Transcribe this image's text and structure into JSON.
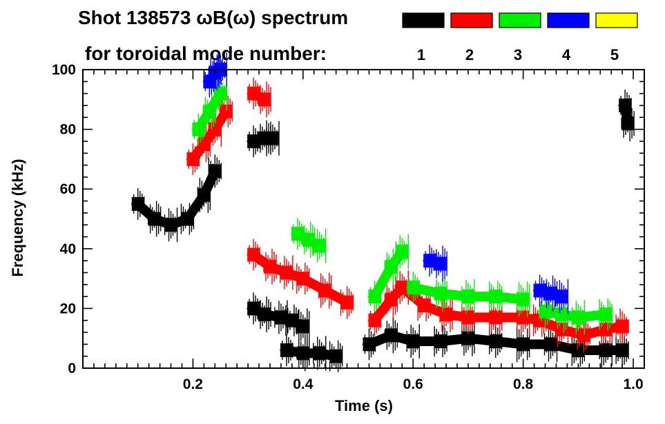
{
  "chart_data": {
    "type": "scatter",
    "title_line1": "Shot 138573 ωB(ω) spectrum",
    "title_line2": "for toroidal mode number:",
    "xlabel": "Time (s)",
    "ylabel": "Frequency (kHz)",
    "xlim": [
      0.0,
      1.02
    ],
    "ylim": [
      0,
      100
    ],
    "x_ticks": [
      "0.2",
      "0.4",
      "0.6",
      "0.8",
      "1.0"
    ],
    "x_tick_values": [
      0.2,
      0.4,
      0.6,
      0.8,
      1.0
    ],
    "y_ticks": [
      "0",
      "20",
      "40",
      "60",
      "80",
      "100"
    ],
    "y_tick_values": [
      0,
      20,
      40,
      60,
      80,
      100
    ],
    "legend": [
      {
        "label": "1",
        "color": "#000000"
      },
      {
        "label": "2",
        "color": "#ff0000"
      },
      {
        "label": "3",
        "color": "#00ee00"
      },
      {
        "label": "4",
        "color": "#0000ff"
      },
      {
        "label": "5",
        "color": "#ffff00"
      }
    ],
    "series": [
      {
        "name": "n=1",
        "color": "#000000",
        "segments": [
          {
            "x": [
              0.1,
              0.13,
              0.16,
              0.19,
              0.22,
              0.24
            ],
            "y": [
              55,
              50,
              48,
              50,
              58,
              66
            ]
          },
          {
            "x": [
              0.31,
              0.33,
              0.345
            ],
            "y": [
              76,
              77,
              77
            ]
          },
          {
            "x": [
              0.31,
              0.33,
              0.36,
              0.38,
              0.4
            ],
            "y": [
              20,
              18,
              17,
              16,
              14
            ]
          },
          {
            "x": [
              0.37,
              0.4,
              0.43,
              0.46
            ],
            "y": [
              6,
              5,
              5,
              4
            ]
          },
          {
            "x": [
              0.52,
              0.56,
              0.6,
              0.65,
              0.7,
              0.75,
              0.8,
              0.85,
              0.9,
              0.95,
              0.98
            ],
            "y": [
              8,
              11,
              9,
              9,
              10,
              9,
              8,
              8,
              6,
              6,
              6
            ]
          },
          {
            "x": [
              0.985,
              0.99
            ],
            "y": [
              88,
              82
            ]
          }
        ]
      },
      {
        "name": "n=2",
        "color": "#ff0000",
        "segments": [
          {
            "x": [
              0.2,
              0.22,
              0.24,
              0.26
            ],
            "y": [
              70,
              75,
              80,
              86
            ]
          },
          {
            "x": [
              0.31,
              0.33
            ],
            "y": [
              92,
              90
            ]
          },
          {
            "x": [
              0.31,
              0.34,
              0.37,
              0.4,
              0.44,
              0.48
            ],
            "y": [
              38,
              34,
              32,
              30,
              26,
              22
            ]
          },
          {
            "x": [
              0.53,
              0.56,
              0.58,
              0.62,
              0.66,
              0.7,
              0.75,
              0.8,
              0.83,
              0.87,
              0.91,
              0.95,
              0.98
            ],
            "y": [
              16,
              23,
              27,
              21,
              18,
              17,
              17,
              17,
              16,
              13,
              11,
              13,
              14
            ]
          }
        ]
      },
      {
        "name": "n=3",
        "color": "#00ee00",
        "segments": [
          {
            "x": [
              0.21,
              0.23,
              0.25
            ],
            "y": [
              80,
              86,
              92
            ]
          },
          {
            "x": [
              0.39,
              0.41,
              0.43
            ],
            "y": [
              45,
              43,
              41
            ]
          },
          {
            "x": [
              0.53,
              0.56,
              0.58
            ],
            "y": [
              24,
              34,
              39
            ]
          },
          {
            "x": [
              0.6,
              0.65,
              0.7,
              0.75,
              0.8
            ],
            "y": [
              27,
              25,
              24,
              24,
              23
            ]
          },
          {
            "x": [
              0.84,
              0.87,
              0.9,
              0.95
            ],
            "y": [
              19,
              18,
              17,
              18
            ]
          }
        ]
      },
      {
        "name": "n=4",
        "color": "#0000ff",
        "segments": [
          {
            "x": [
              0.23,
              0.24,
              0.25
            ],
            "y": [
              96,
              99,
              100
            ]
          },
          {
            "x": [
              0.63,
              0.65
            ],
            "y": [
              36,
              35
            ]
          },
          {
            "x": [
              0.83,
              0.85,
              0.87
            ],
            "y": [
              26,
              25,
              24
            ]
          }
        ]
      },
      {
        "name": "n=5",
        "color": "#ffff00",
        "segments": []
      }
    ]
  }
}
